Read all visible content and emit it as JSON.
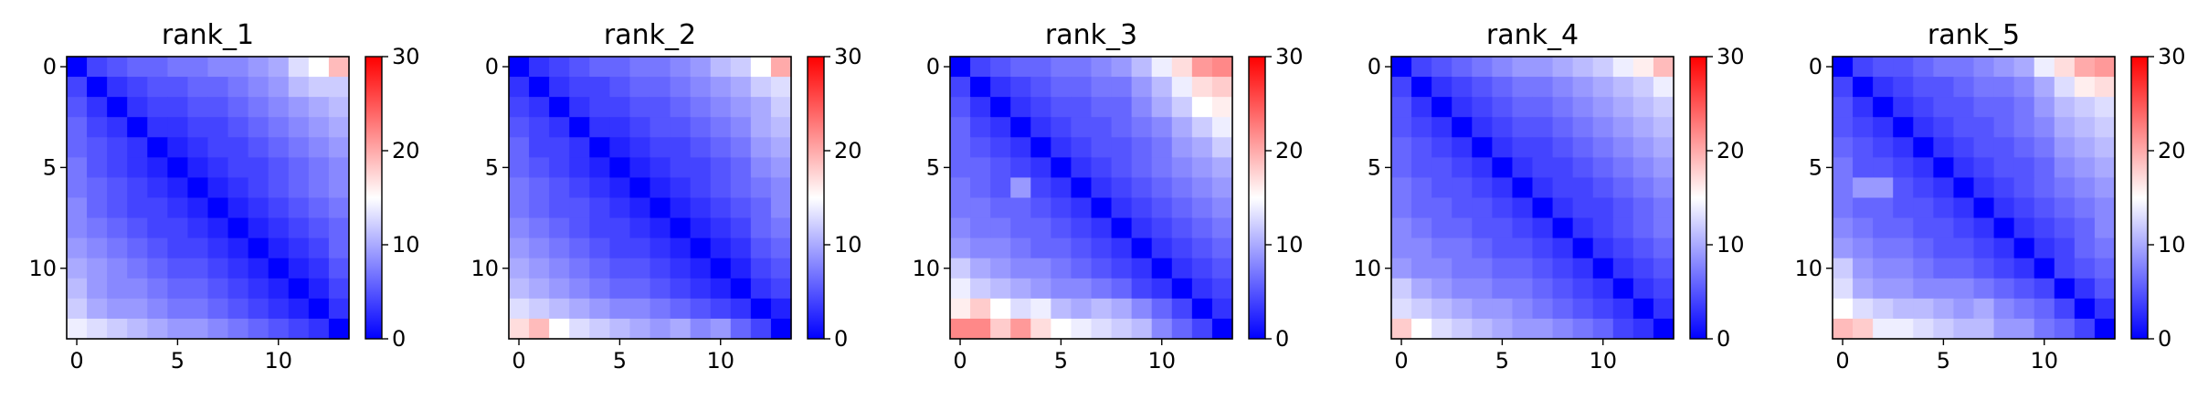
{
  "figure": {
    "colormap": "bwr",
    "colors": {
      "low": "#0000ff",
      "mid": "#ffffff",
      "high": "#ff0000"
    }
  },
  "chart_data": [
    {
      "type": "heatmap",
      "title": "rank_1",
      "xticks": [
        0,
        5,
        10
      ],
      "yticks": [
        0,
        5,
        10
      ],
      "xlim": [
        0,
        13
      ],
      "ylim": [
        13,
        0
      ],
      "colorbar": {
        "vmin": 0,
        "vmax": 30,
        "ticks": [
          0,
          10,
          20,
          30
        ]
      },
      "values": [
        [
          0,
          4,
          5,
          6,
          6,
          7,
          7,
          8,
          8,
          9,
          10,
          13,
          15,
          19
        ],
        [
          4,
          0,
          3,
          4,
          5,
          5,
          6,
          6,
          7,
          8,
          9,
          11,
          12,
          12
        ],
        [
          5,
          3,
          0,
          3,
          4,
          4,
          5,
          5,
          6,
          7,
          8,
          9,
          10,
          11
        ],
        [
          6,
          4,
          3,
          0,
          3,
          3,
          4,
          4,
          5,
          6,
          7,
          8,
          9,
          10
        ],
        [
          6,
          5,
          4,
          3,
          0,
          2,
          3,
          4,
          4,
          5,
          6,
          7,
          8,
          9
        ],
        [
          7,
          5,
          4,
          3,
          2,
          0,
          2,
          3,
          4,
          4,
          5,
          6,
          7,
          8
        ],
        [
          7,
          6,
          5,
          4,
          3,
          2,
          0,
          2,
          3,
          4,
          5,
          6,
          7,
          8
        ],
        [
          8,
          6,
          5,
          4,
          4,
          3,
          2,
          0,
          2,
          3,
          4,
          5,
          6,
          7
        ],
        [
          8,
          7,
          6,
          5,
          4,
          4,
          3,
          2,
          0,
          2,
          3,
          4,
          5,
          6
        ],
        [
          9,
          8,
          7,
          6,
          5,
          4,
          4,
          3,
          2,
          0,
          2,
          3,
          4,
          6
        ],
        [
          10,
          9,
          8,
          7,
          6,
          5,
          5,
          4,
          3,
          2,
          0,
          2,
          3,
          5
        ],
        [
          11,
          9,
          8,
          8,
          7,
          6,
          6,
          5,
          4,
          3,
          2,
          0,
          2,
          4
        ],
        [
          12,
          10,
          9,
          9,
          8,
          7,
          7,
          6,
          5,
          4,
          3,
          2,
          0,
          3
        ],
        [
          14,
          13,
          12,
          11,
          10,
          9,
          9,
          8,
          7,
          6,
          5,
          4,
          3,
          0
        ]
      ]
    },
    {
      "type": "heatmap",
      "title": "rank_2",
      "xticks": [
        0,
        5,
        10
      ],
      "yticks": [
        0,
        5,
        10
      ],
      "xlim": [
        0,
        13
      ],
      "ylim": [
        13,
        0
      ],
      "colorbar": {
        "vmin": 0,
        "vmax": 30,
        "ticks": [
          0,
          10,
          20,
          30
        ]
      },
      "values": [
        [
          0,
          3,
          4,
          5,
          6,
          6,
          7,
          7,
          8,
          9,
          11,
          12,
          15,
          20
        ],
        [
          3,
          0,
          3,
          4,
          4,
          5,
          6,
          6,
          7,
          8,
          9,
          10,
          12,
          13
        ],
        [
          4,
          3,
          0,
          3,
          4,
          4,
          5,
          5,
          6,
          7,
          8,
          9,
          10,
          12
        ],
        [
          5,
          4,
          3,
          0,
          3,
          3,
          4,
          5,
          5,
          6,
          7,
          8,
          10,
          11
        ],
        [
          6,
          4,
          4,
          3,
          0,
          2,
          3,
          4,
          4,
          5,
          6,
          7,
          9,
          10
        ],
        [
          6,
          5,
          4,
          3,
          2,
          0,
          2,
          3,
          4,
          4,
          5,
          6,
          8,
          9
        ],
        [
          7,
          6,
          5,
          4,
          3,
          2,
          0,
          2,
          3,
          4,
          5,
          6,
          7,
          8
        ],
        [
          7,
          6,
          5,
          5,
          4,
          3,
          2,
          0,
          2,
          3,
          4,
          5,
          6,
          8
        ],
        [
          8,
          7,
          6,
          5,
          4,
          4,
          3,
          2,
          0,
          2,
          3,
          4,
          6,
          7
        ],
        [
          9,
          8,
          7,
          6,
          5,
          4,
          4,
          3,
          2,
          0,
          2,
          3,
          5,
          6
        ],
        [
          10,
          9,
          8,
          7,
          6,
          5,
          5,
          4,
          3,
          2,
          0,
          2,
          4,
          5
        ],
        [
          11,
          10,
          9,
          8,
          7,
          6,
          6,
          5,
          4,
          3,
          2,
          0,
          3,
          4
        ],
        [
          13,
          12,
          11,
          10,
          9,
          8,
          8,
          7,
          6,
          5,
          4,
          3,
          0,
          2
        ],
        [
          17,
          19,
          15,
          13,
          12,
          11,
          10,
          9,
          10,
          8,
          9,
          6,
          4,
          0
        ]
      ]
    },
    {
      "type": "heatmap",
      "title": "rank_3",
      "xticks": [
        0,
        5,
        10
      ],
      "yticks": [
        0,
        5,
        10
      ],
      "xlim": [
        0,
        13
      ],
      "ylim": [
        13,
        0
      ],
      "colorbar": {
        "vmin": 0,
        "vmax": 30,
        "ticks": [
          0,
          10,
          20,
          30
        ]
      },
      "values": [
        [
          0,
          4,
          5,
          6,
          6,
          7,
          7,
          8,
          9,
          11,
          14,
          17,
          21,
          22
        ],
        [
          4,
          0,
          3,
          4,
          5,
          6,
          6,
          7,
          7,
          9,
          11,
          14,
          17,
          18
        ],
        [
          5,
          3,
          0,
          3,
          4,
          5,
          5,
          6,
          6,
          8,
          10,
          12,
          15,
          16
        ],
        [
          6,
          4,
          3,
          0,
          3,
          4,
          5,
          5,
          6,
          7,
          8,
          10,
          12,
          14
        ],
        [
          6,
          5,
          4,
          3,
          0,
          3,
          4,
          5,
          5,
          6,
          7,
          9,
          10,
          12
        ],
        [
          6,
          6,
          5,
          4,
          3,
          0,
          3,
          4,
          5,
          6,
          7,
          8,
          9,
          10
        ],
        [
          7,
          6,
          5,
          9,
          4,
          3,
          0,
          3,
          4,
          5,
          6,
          7,
          8,
          9
        ],
        [
          7,
          7,
          6,
          6,
          5,
          4,
          3,
          0,
          3,
          4,
          5,
          6,
          7,
          8
        ],
        [
          8,
          7,
          7,
          6,
          6,
          5,
          4,
          3,
          0,
          3,
          4,
          5,
          6,
          7
        ],
        [
          9,
          8,
          8,
          7,
          6,
          6,
          5,
          4,
          3,
          0,
          3,
          4,
          5,
          6
        ],
        [
          12,
          10,
          9,
          8,
          8,
          7,
          6,
          5,
          4,
          3,
          0,
          3,
          4,
          5
        ],
        [
          14,
          12,
          11,
          10,
          9,
          8,
          8,
          7,
          6,
          4,
          3,
          0,
          3,
          4
        ],
        [
          16,
          18,
          15,
          13,
          14,
          11,
          10,
          11,
          10,
          8,
          6,
          4,
          0,
          3
        ],
        [
          22,
          22,
          18,
          21,
          17,
          15,
          14,
          13,
          12,
          11,
          8,
          6,
          4,
          0
        ]
      ]
    },
    {
      "type": "heatmap",
      "title": "rank_4",
      "xticks": [
        0,
        5,
        10
      ],
      "yticks": [
        0,
        5,
        10
      ],
      "xlim": [
        0,
        13
      ],
      "ylim": [
        13,
        0
      ],
      "colorbar": {
        "vmin": 0,
        "vmax": 30,
        "ticks": [
          0,
          10,
          20,
          30
        ]
      },
      "values": [
        [
          0,
          4,
          5,
          6,
          7,
          8,
          9,
          9,
          10,
          11,
          12,
          14,
          16,
          19
        ],
        [
          4,
          0,
          3,
          4,
          5,
          6,
          7,
          7,
          8,
          9,
          10,
          11,
          12,
          14
        ],
        [
          5,
          3,
          0,
          3,
          4,
          5,
          6,
          6,
          7,
          8,
          9,
          10,
          11,
          12
        ],
        [
          5,
          4,
          3,
          0,
          3,
          4,
          5,
          5,
          6,
          7,
          8,
          9,
          10,
          11
        ],
        [
          6,
          5,
          4,
          3,
          0,
          3,
          4,
          4,
          5,
          6,
          7,
          8,
          9,
          10
        ],
        [
          6,
          5,
          5,
          4,
          3,
          0,
          3,
          4,
          4,
          5,
          6,
          7,
          8,
          9
        ],
        [
          7,
          6,
          5,
          5,
          4,
          3,
          0,
          3,
          4,
          4,
          5,
          6,
          7,
          8
        ],
        [
          7,
          6,
          6,
          5,
          5,
          4,
          3,
          0,
          3,
          4,
          4,
          5,
          6,
          7
        ],
        [
          8,
          7,
          6,
          6,
          5,
          5,
          4,
          3,
          0,
          3,
          4,
          5,
          6,
          7
        ],
        [
          8,
          8,
          7,
          7,
          6,
          5,
          5,
          4,
          3,
          0,
          3,
          4,
          5,
          6
        ],
        [
          9,
          8,
          8,
          7,
          7,
          6,
          6,
          5,
          4,
          3,
          0,
          3,
          4,
          5
        ],
        [
          12,
          10,
          9,
          8,
          8,
          7,
          7,
          6,
          5,
          4,
          3,
          0,
          3,
          4
        ],
        [
          13,
          12,
          11,
          10,
          9,
          9,
          8,
          7,
          6,
          5,
          4,
          3,
          0,
          3
        ],
        [
          18,
          15,
          13,
          12,
          11,
          10,
          9,
          9,
          8,
          7,
          6,
          4,
          3,
          0
        ]
      ]
    },
    {
      "type": "heatmap",
      "title": "rank_5",
      "xticks": [
        0,
        5,
        10
      ],
      "yticks": [
        0,
        5,
        10
      ],
      "xlim": [
        0,
        13
      ],
      "ylim": [
        13,
        0
      ],
      "colorbar": {
        "vmin": 0,
        "vmax": 30,
        "ticks": [
          0,
          10,
          20,
          30
        ]
      },
      "values": [
        [
          0,
          4,
          5,
          5,
          6,
          7,
          7,
          8,
          9,
          10,
          14,
          17,
          20,
          21
        ],
        [
          4,
          0,
          3,
          4,
          5,
          5,
          6,
          7,
          7,
          8,
          10,
          13,
          16,
          17
        ],
        [
          5,
          3,
          0,
          3,
          4,
          5,
          5,
          6,
          6,
          7,
          9,
          11,
          12,
          13
        ],
        [
          5,
          4,
          3,
          0,
          3,
          4,
          5,
          5,
          6,
          7,
          8,
          10,
          11,
          12
        ],
        [
          6,
          5,
          4,
          3,
          0,
          3,
          4,
          5,
          5,
          6,
          7,
          9,
          10,
          11
        ],
        [
          7,
          5,
          5,
          4,
          3,
          0,
          3,
          4,
          5,
          5,
          6,
          8,
          9,
          10
        ],
        [
          7,
          9,
          9,
          5,
          4,
          3,
          0,
          3,
          4,
          5,
          6,
          7,
          8,
          9
        ],
        [
          7,
          6,
          6,
          5,
          5,
          4,
          3,
          0,
          3,
          4,
          5,
          6,
          7,
          8
        ],
        [
          8,
          7,
          6,
          6,
          5,
          5,
          4,
          3,
          0,
          3,
          4,
          5,
          6,
          8
        ],
        [
          9,
          8,
          7,
          7,
          6,
          5,
          5,
          4,
          3,
          0,
          3,
          4,
          6,
          7
        ],
        [
          12,
          9,
          8,
          8,
          7,
          6,
          6,
          5,
          4,
          3,
          0,
          4,
          5,
          6
        ],
        [
          13,
          10,
          9,
          9,
          8,
          8,
          8,
          7,
          6,
          5,
          4,
          0,
          3,
          5
        ],
        [
          15,
          13,
          12,
          11,
          11,
          10,
          9,
          10,
          8,
          7,
          6,
          4,
          0,
          3
        ],
        [
          19,
          18,
          14,
          14,
          13,
          12,
          11,
          11,
          9,
          9,
          7,
          6,
          4,
          0
        ]
      ]
    }
  ]
}
